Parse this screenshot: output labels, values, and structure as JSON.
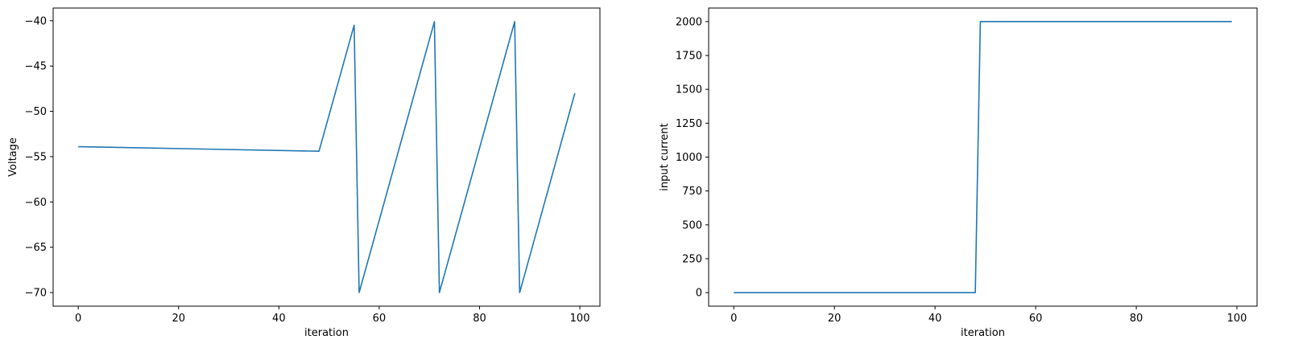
{
  "chart_data": [
    {
      "type": "line",
      "title": "",
      "xlabel": "iteration",
      "ylabel": "Voltage",
      "xlim": [
        -5,
        104
      ],
      "ylim": [
        -71.5,
        -38.6
      ],
      "xticks": [
        0,
        20,
        40,
        60,
        80,
        100
      ],
      "xtick_labels": [
        "0",
        "20",
        "40",
        "60",
        "80",
        "100"
      ],
      "yticks": [
        -70,
        -65,
        -60,
        -55,
        -50,
        -45,
        -40
      ],
      "ytick_labels": [
        "−70",
        "−65",
        "−60",
        "−55",
        "−50",
        "−45",
        "−40"
      ],
      "grid": false,
      "color": "#1f77b4",
      "series": [
        {
          "x": [
            0,
            48,
            55,
            56,
            71,
            72,
            87,
            88,
            99
          ],
          "y": [
            -53.9,
            -54.4,
            -40.5,
            -70.0,
            -40.1,
            -70.0,
            -40.1,
            -70.0,
            -48.0
          ]
        }
      ]
    },
    {
      "type": "line",
      "title": "",
      "xlabel": "iteration",
      "ylabel": "input current",
      "xlim": [
        -5,
        104
      ],
      "ylim": [
        -100,
        2100
      ],
      "xticks": [
        0,
        20,
        40,
        60,
        80,
        100
      ],
      "xtick_labels": [
        "0",
        "20",
        "40",
        "60",
        "80",
        "100"
      ],
      "yticks": [
        0,
        250,
        500,
        750,
        1000,
        1250,
        1500,
        1750,
        2000
      ],
      "ytick_labels": [
        "0",
        "250",
        "500",
        "750",
        "1000",
        "1250",
        "1500",
        "1750",
        "2000"
      ],
      "grid": false,
      "color": "#1f77b4",
      "series": [
        {
          "x": [
            0,
            48,
            49,
            99
          ],
          "y": [
            0,
            0,
            2000,
            2000
          ]
        }
      ]
    }
  ]
}
